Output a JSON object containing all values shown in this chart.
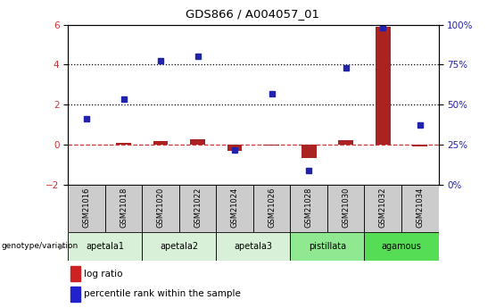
{
  "title": "GDS866 / A004057_01",
  "samples": [
    "GSM21016",
    "GSM21018",
    "GSM21020",
    "GSM21022",
    "GSM21024",
    "GSM21026",
    "GSM21028",
    "GSM21030",
    "GSM21032",
    "GSM21034"
  ],
  "log_ratio": [
    0.02,
    0.1,
    0.2,
    0.28,
    -0.32,
    -0.05,
    -0.65,
    0.22,
    5.9,
    -0.1
  ],
  "percentile_rank": [
    1.3,
    2.3,
    4.2,
    4.4,
    -0.25,
    2.55,
    -1.3,
    3.85,
    5.85,
    1.0
  ],
  "groups": [
    {
      "label": "apetala1",
      "span": [
        0,
        1
      ],
      "color": "#d8f0d8"
    },
    {
      "label": "apetala2",
      "span": [
        2,
        3
      ],
      "color": "#d8f0d8"
    },
    {
      "label": "apetala3",
      "span": [
        4,
        5
      ],
      "color": "#d8f0d8"
    },
    {
      "label": "pistillata",
      "span": [
        6,
        7
      ],
      "color": "#90e890"
    },
    {
      "label": "agamous",
      "span": [
        8,
        9
      ],
      "color": "#55dd55"
    }
  ],
  "ylim_left": [
    -2,
    6
  ],
  "ylim_right": [
    0,
    100
  ],
  "bar_color": "#aa2222",
  "dot_color": "#2222aa",
  "dashed_line_color": "#cc3333",
  "dotted_line_vals": [
    2,
    4
  ],
  "header_bg": "#cccccc",
  "legend_bar_color": "#cc2222",
  "legend_dot_color": "#2222cc"
}
